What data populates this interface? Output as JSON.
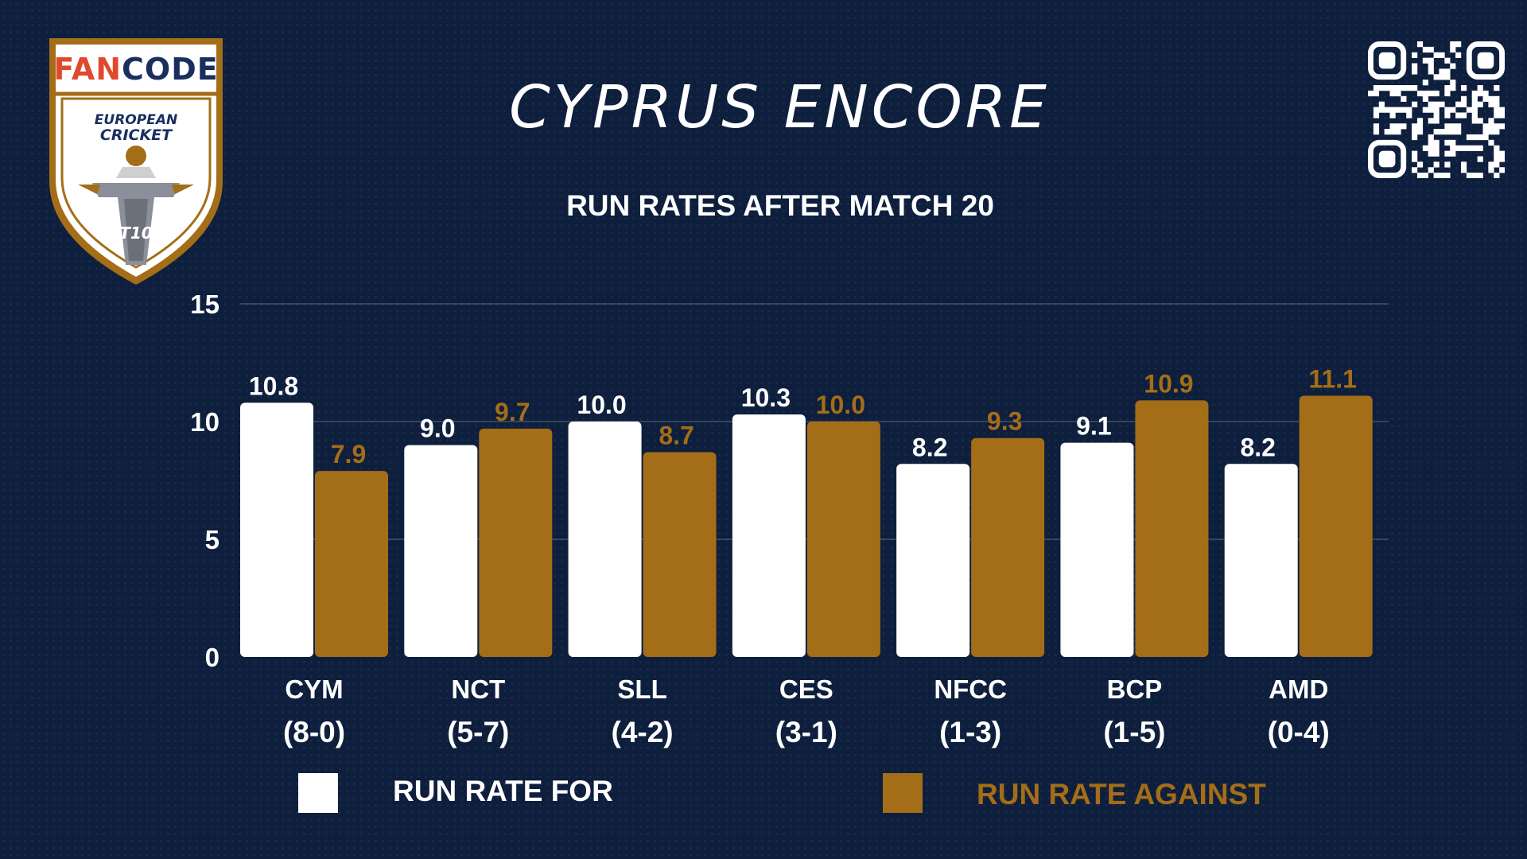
{
  "header": {
    "title": "CYPRUS ENCORE",
    "subtitle": "RUN RATES AFTER MATCH 20"
  },
  "logo": {
    "brand": "FANCODE",
    "line1": "EUROPEAN",
    "line2": "CRICKET",
    "badge": "T10"
  },
  "colors": {
    "background": "#0e1f3d",
    "for": "#ffffff",
    "against": "#a46d17"
  },
  "chart_data": {
    "type": "bar",
    "categories": [
      "CYM",
      "NCT",
      "SLL",
      "CES",
      "NFCC",
      "BCP",
      "AMD"
    ],
    "records": [
      "(8-0)",
      "(5-7)",
      "(4-2)",
      "(3-1)",
      "(1-3)",
      "(1-5)",
      "(0-4)"
    ],
    "series": [
      {
        "name": "RUN RATE FOR",
        "values": [
          10.8,
          9.0,
          10.0,
          10.3,
          8.2,
          9.1,
          8.2
        ],
        "labels": [
          "10.8",
          "9.0",
          "10.0",
          "10.3",
          "8.2",
          "9.1",
          "8.2"
        ],
        "color": "#ffffff"
      },
      {
        "name": "RUN RATE AGAINST",
        "values": [
          7.9,
          9.7,
          8.7,
          10.0,
          9.3,
          10.9,
          11.1
        ],
        "labels": [
          "7.9",
          "9.7",
          "8.7",
          "10.0",
          "9.3",
          "10.9",
          "11.1"
        ],
        "color": "#a46d17"
      }
    ],
    "yticks": [
      "0",
      "5",
      "10",
      "15"
    ],
    "ylim": [
      0,
      15
    ],
    "grid": true,
    "legend": "bottom"
  }
}
